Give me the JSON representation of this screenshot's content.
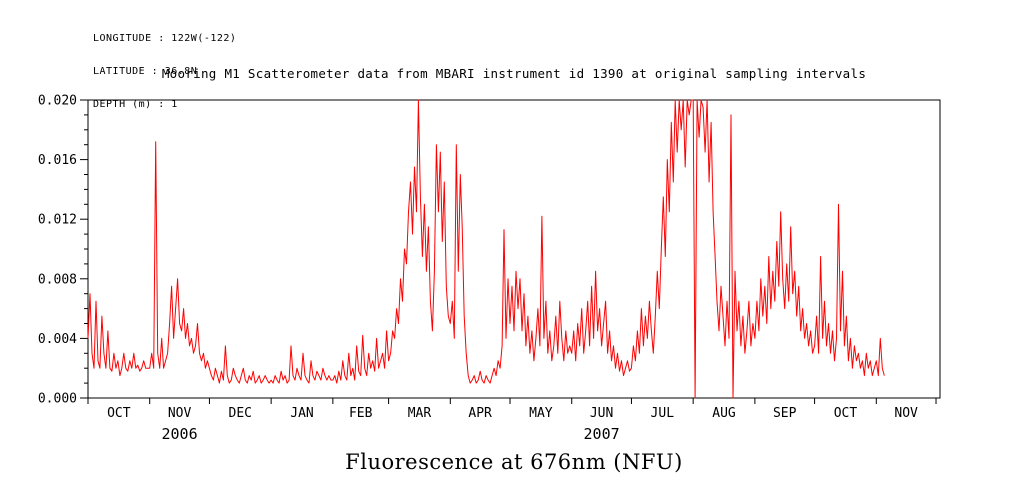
{
  "header": {
    "line1": "LONGITUDE : 122W(-122)",
    "line2": "LATITUDE : 36.8N",
    "line3": "DEPTH (m) : 1"
  },
  "title": "Mooring M1 Scatterometer data from MBARI instrument id 1390 at original sampling intervals",
  "footer_label": "Fluorescence at 676nm (NFU)",
  "colors": {
    "line": "#ff0000",
    "axis": "#000000",
    "text": "#000000"
  },
  "chart_data": {
    "type": "line",
    "title": "Mooring M1 Scatterometer data from MBARI instrument id 1390 at original sampling intervals",
    "ylabel": "Fluorescence at 676nm (NFU)",
    "x_unit": "days since 2006-10-01",
    "x_start": 0,
    "x_step": 1,
    "xlim": [
      0,
      428
    ],
    "ylim": [
      0,
      0.02
    ],
    "y_major_ticks": [
      0.0,
      0.004,
      0.008,
      0.012,
      0.016,
      0.02
    ],
    "y_minor_step": 0.001,
    "grid": false,
    "legend": "none",
    "month_boundaries": [
      0,
      31,
      61,
      92,
      123,
      151,
      182,
      212,
      243,
      273,
      304,
      335,
      365,
      396,
      426
    ],
    "month_labels": [
      {
        "label": "OCT",
        "x": 15.5
      },
      {
        "label": "NOV",
        "x": 46
      },
      {
        "label": "DEC",
        "x": 76.5
      },
      {
        "label": "JAN",
        "x": 107.5
      },
      {
        "label": "FEB",
        "x": 137
      },
      {
        "label": "MAR",
        "x": 166.5
      },
      {
        "label": "APR",
        "x": 197
      },
      {
        "label": "MAY",
        "x": 227.5
      },
      {
        "label": "JUN",
        "x": 258
      },
      {
        "label": "JUL",
        "x": 288.5
      },
      {
        "label": "AUG",
        "x": 319.5
      },
      {
        "label": "SEP",
        "x": 350
      },
      {
        "label": "OCT",
        "x": 380.5
      },
      {
        "label": "NOV",
        "x": 411
      }
    ],
    "year_labels": [
      {
        "label": "2006",
        "x": 46
      },
      {
        "label": "2007",
        "x": 258
      }
    ],
    "values": [
      0.004,
      0.007,
      0.003,
      0.002,
      0.0065,
      0.0025,
      0.002,
      0.0055,
      0.003,
      0.002,
      0.0045,
      0.002,
      0.0018,
      0.003,
      0.002,
      0.0025,
      0.0015,
      0.002,
      0.003,
      0.002,
      0.0018,
      0.0025,
      0.002,
      0.003,
      0.002,
      0.0022,
      0.0018,
      0.002,
      0.0025,
      0.002,
      0.002,
      0.002,
      0.003,
      0.002,
      0.0172,
      0.003,
      0.002,
      0.004,
      0.002,
      0.0025,
      0.003,
      0.005,
      0.0075,
      0.004,
      0.006,
      0.008,
      0.005,
      0.0045,
      0.006,
      0.004,
      0.005,
      0.0035,
      0.004,
      0.003,
      0.0035,
      0.005,
      0.003,
      0.0025,
      0.003,
      0.002,
      0.0025,
      0.002,
      0.0015,
      0.0012,
      0.002,
      0.0015,
      0.001,
      0.0018,
      0.0012,
      0.0035,
      0.0015,
      0.001,
      0.0012,
      0.002,
      0.0015,
      0.0012,
      0.001,
      0.0015,
      0.002,
      0.0012,
      0.001,
      0.0015,
      0.0012,
      0.0018,
      0.001,
      0.0012,
      0.0015,
      0.001,
      0.0012,
      0.0015,
      0.0012,
      0.001,
      0.0012,
      0.001,
      0.0015,
      0.0012,
      0.001,
      0.0018,
      0.0012,
      0.0015,
      0.001,
      0.0012,
      0.0035,
      0.0015,
      0.0012,
      0.002,
      0.0015,
      0.0012,
      0.003,
      0.0015,
      0.0012,
      0.001,
      0.0025,
      0.0015,
      0.0012,
      0.0018,
      0.0015,
      0.0012,
      0.002,
      0.0015,
      0.0012,
      0.0015,
      0.0012,
      0.0012,
      0.0015,
      0.001,
      0.0018,
      0.0012,
      0.0025,
      0.0015,
      0.0012,
      0.003,
      0.0015,
      0.002,
      0.0012,
      0.0035,
      0.0018,
      0.0015,
      0.0042,
      0.002,
      0.0015,
      0.003,
      0.002,
      0.0025,
      0.0018,
      0.004,
      0.002,
      0.0025,
      0.003,
      0.002,
      0.0045,
      0.0025,
      0.003,
      0.0045,
      0.004,
      0.006,
      0.005,
      0.008,
      0.0065,
      0.01,
      0.009,
      0.0125,
      0.0145,
      0.011,
      0.0155,
      0.0125,
      0.02,
      0.0135,
      0.0095,
      0.013,
      0.0085,
      0.0115,
      0.0065,
      0.0045,
      0.0085,
      0.017,
      0.0125,
      0.0165,
      0.0105,
      0.0145,
      0.0075,
      0.0055,
      0.005,
      0.0065,
      0.004,
      0.017,
      0.0085,
      0.015,
      0.0115,
      0.0055,
      0.003,
      0.0015,
      0.001,
      0.0012,
      0.0015,
      0.001,
      0.0012,
      0.0018,
      0.0012,
      0.001,
      0.0015,
      0.0012,
      0.001,
      0.0015,
      0.002,
      0.0015,
      0.0025,
      0.002,
      0.0035,
      0.0113,
      0.004,
      0.008,
      0.005,
      0.0075,
      0.0045,
      0.0085,
      0.006,
      0.008,
      0.0045,
      0.007,
      0.0035,
      0.0055,
      0.003,
      0.0045,
      0.0025,
      0.004,
      0.006,
      0.0035,
      0.0122,
      0.004,
      0.0065,
      0.003,
      0.0045,
      0.0025,
      0.0035,
      0.0055,
      0.003,
      0.0065,
      0.004,
      0.0025,
      0.0045,
      0.003,
      0.0035,
      0.003,
      0.0045,
      0.0025,
      0.005,
      0.0035,
      0.006,
      0.003,
      0.0045,
      0.0065,
      0.0035,
      0.0075,
      0.004,
      0.0085,
      0.0045,
      0.006,
      0.0035,
      0.005,
      0.0065,
      0.003,
      0.0045,
      0.0025,
      0.0035,
      0.002,
      0.003,
      0.0018,
      0.0025,
      0.0015,
      0.002,
      0.0025,
      0.0018,
      0.002,
      0.0035,
      0.0025,
      0.0045,
      0.003,
      0.006,
      0.0035,
      0.0055,
      0.004,
      0.0065,
      0.0045,
      0.003,
      0.0055,
      0.0085,
      0.006,
      0.01,
      0.0135,
      0.0095,
      0.016,
      0.0125,
      0.0185,
      0.0145,
      0.02,
      0.0165,
      0.02,
      0.018,
      0.02,
      0.0155,
      0.02,
      0.019,
      0.02,
      0.02,
      0.0,
      0.02,
      0.0175,
      0.02,
      0.0195,
      0.0165,
      0.02,
      0.0145,
      0.0185,
      0.0125,
      0.0095,
      0.0065,
      0.0045,
      0.0075,
      0.0055,
      0.0035,
      0.0065,
      0.004,
      0.019,
      0.0,
      0.0085,
      0.0045,
      0.0065,
      0.0035,
      0.0055,
      0.003,
      0.0045,
      0.0065,
      0.0035,
      0.005,
      0.004,
      0.0065,
      0.0045,
      0.008,
      0.0055,
      0.0075,
      0.005,
      0.0095,
      0.006,
      0.0085,
      0.0065,
      0.0105,
      0.0075,
      0.0125,
      0.008,
      0.006,
      0.009,
      0.0065,
      0.0115,
      0.007,
      0.0085,
      0.0055,
      0.0075,
      0.0045,
      0.006,
      0.004,
      0.005,
      0.0035,
      0.0045,
      0.003,
      0.0035,
      0.0055,
      0.003,
      0.0095,
      0.004,
      0.0065,
      0.0035,
      0.005,
      0.003,
      0.0045,
      0.0025,
      0.004,
      0.013,
      0.0045,
      0.0085,
      0.0035,
      0.0055,
      0.0025,
      0.004,
      0.002,
      0.0035,
      0.0025,
      0.003,
      0.002,
      0.0025,
      0.0015,
      0.003,
      0.002,
      0.0025,
      0.0015,
      0.002,
      0.0025,
      0.0015,
      0.004,
      0.002,
      0.0015
    ]
  }
}
